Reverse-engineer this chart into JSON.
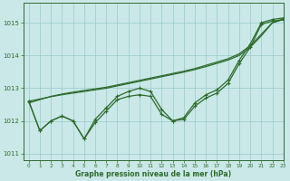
{
  "background_color": "#cbe8e8",
  "grid_color": "#9ecece",
  "line_color": "#2d6b2d",
  "xlabel": "Graphe pression niveau de la mer (hPa)",
  "ylim": [
    1010.8,
    1015.6
  ],
  "xlim": [
    -0.5,
    23
  ],
  "yticks": [
    1011,
    1012,
    1013,
    1014,
    1015
  ],
  "xticks": [
    0,
    1,
    2,
    3,
    4,
    5,
    6,
    7,
    8,
    9,
    10,
    11,
    12,
    13,
    14,
    15,
    16,
    17,
    18,
    19,
    20,
    21,
    22,
    23
  ],
  "series_wavy1": [
    1012.6,
    1011.7,
    1012.0,
    1012.15,
    1012.0,
    1011.45,
    1011.95,
    1012.3,
    1012.65,
    1012.75,
    1012.8,
    1012.75,
    1012.2,
    1012.0,
    1012.05,
    1012.45,
    1012.7,
    1012.85,
    1013.15,
    1013.75,
    1014.25,
    1014.95,
    1015.05,
    1015.1
  ],
  "series_wavy2": [
    1012.6,
    1011.7,
    1012.0,
    1012.15,
    1012.0,
    1011.45,
    1012.05,
    1012.4,
    1012.75,
    1012.9,
    1013.0,
    1012.9,
    1012.35,
    1012.0,
    1012.1,
    1012.55,
    1012.8,
    1012.95,
    1013.25,
    1013.85,
    1014.35,
    1015.0,
    1015.1,
    1015.15
  ],
  "series_linear1": [
    1012.55,
    1012.65,
    1012.75,
    1012.82,
    1012.88,
    1012.93,
    1012.98,
    1013.03,
    1013.1,
    1013.17,
    1013.24,
    1013.31,
    1013.38,
    1013.45,
    1013.52,
    1013.6,
    1013.7,
    1013.8,
    1013.9,
    1014.05,
    1014.3,
    1014.65,
    1015.0,
    1015.1
  ],
  "series_linear2": [
    1012.6,
    1012.67,
    1012.74,
    1012.8,
    1012.85,
    1012.9,
    1012.95,
    1013.0,
    1013.07,
    1013.14,
    1013.21,
    1013.28,
    1013.35,
    1013.42,
    1013.49,
    1013.57,
    1013.66,
    1013.76,
    1013.86,
    1014.0,
    1014.25,
    1014.6,
    1015.0,
    1015.12
  ]
}
